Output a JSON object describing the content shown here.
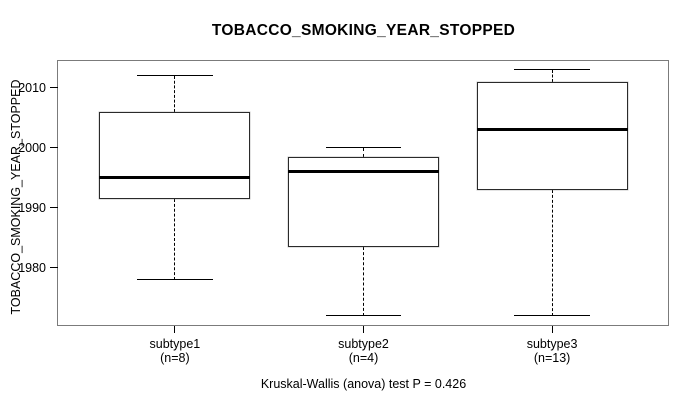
{
  "figure": {
    "title": "TOBACCO_SMOKING_YEAR_STOPPED",
    "y_axis_label": "TOBACCO_SMOKING_YEAR_STOPPED",
    "footer_annotation": "Kruskal-Wallis (anova) test P = 0.426"
  },
  "chart_data": {
    "type": "boxplot",
    "title": "TOBACCO_SMOKING_YEAR_STOPPED",
    "xlabel": "",
    "ylabel": "TOBACCO_SMOKING_YEAR_STOPPED",
    "yticks": [
      1980,
      1990,
      2000,
      2010
    ],
    "ylim": [
      1970.3,
      2014.5
    ],
    "grid": false,
    "legend": "none",
    "categories": [
      "subtype1",
      "subtype2",
      "subtype3"
    ],
    "category_counts": [
      "(n=8)",
      "(n=4)",
      "(n=13)"
    ],
    "series": [
      {
        "name": "subtype1",
        "n": 8,
        "whisker_low": 1978,
        "q1": 1991.5,
        "median": 1995,
        "q3": 2006,
        "whisker_high": 2012,
        "outliers": []
      },
      {
        "name": "subtype2",
        "n": 4,
        "whisker_low": 1972,
        "q1": 1983.5,
        "median": 1996,
        "q3": 1998.5,
        "whisker_high": 2000,
        "outliers": []
      },
      {
        "name": "subtype3",
        "n": 13,
        "whisker_low": 1972,
        "q1": 1993,
        "median": 2003,
        "q3": 2011,
        "whisker_high": 2013,
        "outliers": []
      }
    ],
    "annotation": "Kruskal-Wallis (anova) test P = 0.426",
    "colors": {
      "frame": "#7b7b7b",
      "box_border": "#2a2a2a",
      "median": "#000000",
      "whisker": "#000000",
      "text": "#000000",
      "background": "#ffffff"
    }
  }
}
